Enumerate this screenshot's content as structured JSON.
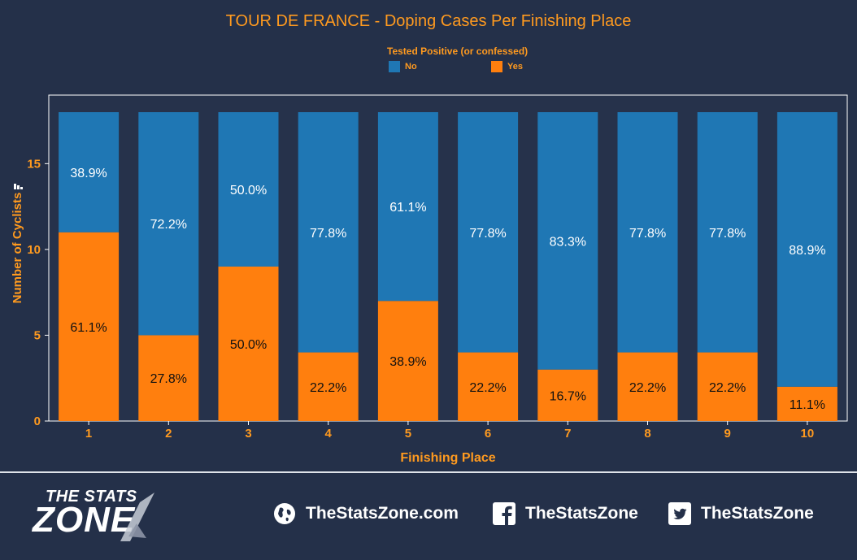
{
  "chart_data": {
    "type": "bar",
    "stacked": true,
    "title": "TOUR DE FRANCE - Doping Cases Per Finishing Place",
    "xlabel": "Finishing Place",
    "ylabel": "Number of Cyclists",
    "ylim": [
      0,
      18
    ],
    "yticks": [
      0,
      5,
      10,
      15
    ],
    "legend_title": "Tested Positive (or confessed)",
    "categories": [
      "1",
      "2",
      "3",
      "4",
      "5",
      "6",
      "7",
      "8",
      "9",
      "10"
    ],
    "series": [
      {
        "name": "Yes",
        "color": "#ff7f0e",
        "values": [
          11,
          5,
          9,
          4,
          7,
          4,
          3,
          4,
          4,
          2
        ],
        "labels": [
          "61.1%",
          "27.8%",
          "50.0%",
          "22.2%",
          "38.9%",
          "22.2%",
          "16.7%",
          "22.2%",
          "22.2%",
          "11.1%"
        ]
      },
      {
        "name": "No",
        "color": "#1f77b4",
        "values": [
          7,
          13,
          9,
          14,
          11,
          14,
          15,
          14,
          14,
          16
        ],
        "labels": [
          "38.9%",
          "72.2%",
          "50.0%",
          "77.8%",
          "61.1%",
          "77.8%",
          "83.3%",
          "77.8%",
          "77.8%",
          "88.9%"
        ]
      }
    ],
    "grid": false,
    "legend_position": "top-center"
  },
  "footer": {
    "logo_top": "THE STATS",
    "logo_bottom": "ZONE",
    "website": "TheStatsZone.com",
    "facebook": "TheStatsZone",
    "twitter": "TheStatsZone"
  },
  "colors": {
    "background": "#243049",
    "accent": "#ff9a1f",
    "plot_bg": "#26324b"
  }
}
